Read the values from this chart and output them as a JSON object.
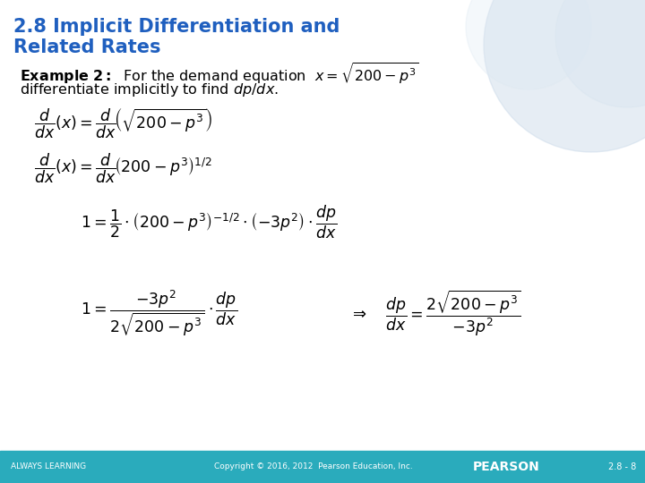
{
  "title_line1": "2.8 Implicit Differentiation and",
  "title_line2": "Related Rates",
  "title_color": "#1F5FBF",
  "bg_color": "#FFFFFF",
  "footer_bg": "#2AABBC",
  "footer_text_left": "ALWAYS LEARNING",
  "footer_text_center": "Copyright © 2016, 2012  Pearson Education, Inc.",
  "footer_text_right": "PEARSON",
  "footer_text_page": "2.8 - 8",
  "footer_color": "#FFFFFF"
}
